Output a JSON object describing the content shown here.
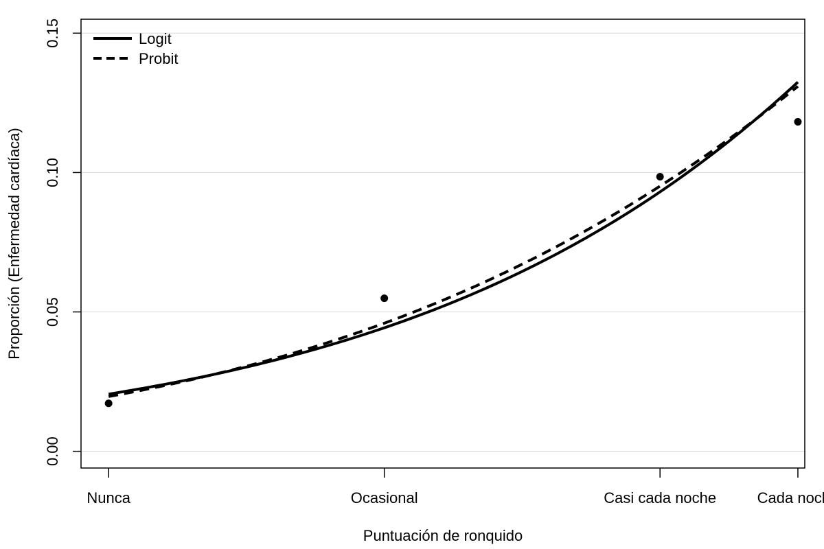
{
  "chart_data": {
    "type": "line",
    "xlabel": "Puntuación de ronquido",
    "ylabel": "Proporción (Enfermedad cardíaca)",
    "x_tick_labels": [
      "Nunca",
      "Ocasional",
      "Casi cada noche",
      "Cada noche"
    ],
    "x_tick_positions": [
      0,
      2,
      4,
      5
    ],
    "xlim": [
      -0.2,
      5.05
    ],
    "ylim": [
      -0.006,
      0.155
    ],
    "y_ticks": [
      0.0,
      0.05,
      0.1,
      0.15
    ],
    "y_tick_labels": [
      "0.00",
      "0.05",
      "0.10",
      "0.15"
    ],
    "grid": "horizontal",
    "legend": {
      "position": "top-left",
      "entries": [
        {
          "label": "Logit",
          "style": "solid"
        },
        {
          "label": "Probit",
          "style": "dashed"
        }
      ]
    },
    "observed_points": {
      "x": [
        0,
        2,
        4,
        5
      ],
      "y": [
        0.0172,
        0.0549,
        0.0985,
        0.1182
      ]
    },
    "series": [
      {
        "name": "Logit",
        "style": "solid",
        "model": {
          "link": "logit",
          "intercept": -3.866,
          "slope": 0.3973
        }
      },
      {
        "name": "Probit",
        "style": "dashed",
        "model": {
          "link": "probit",
          "intercept": -2.061,
          "slope": 0.1878
        }
      }
    ],
    "colors": {
      "line": "#000000",
      "grid": "#dddddd",
      "frame": "#000000"
    }
  }
}
